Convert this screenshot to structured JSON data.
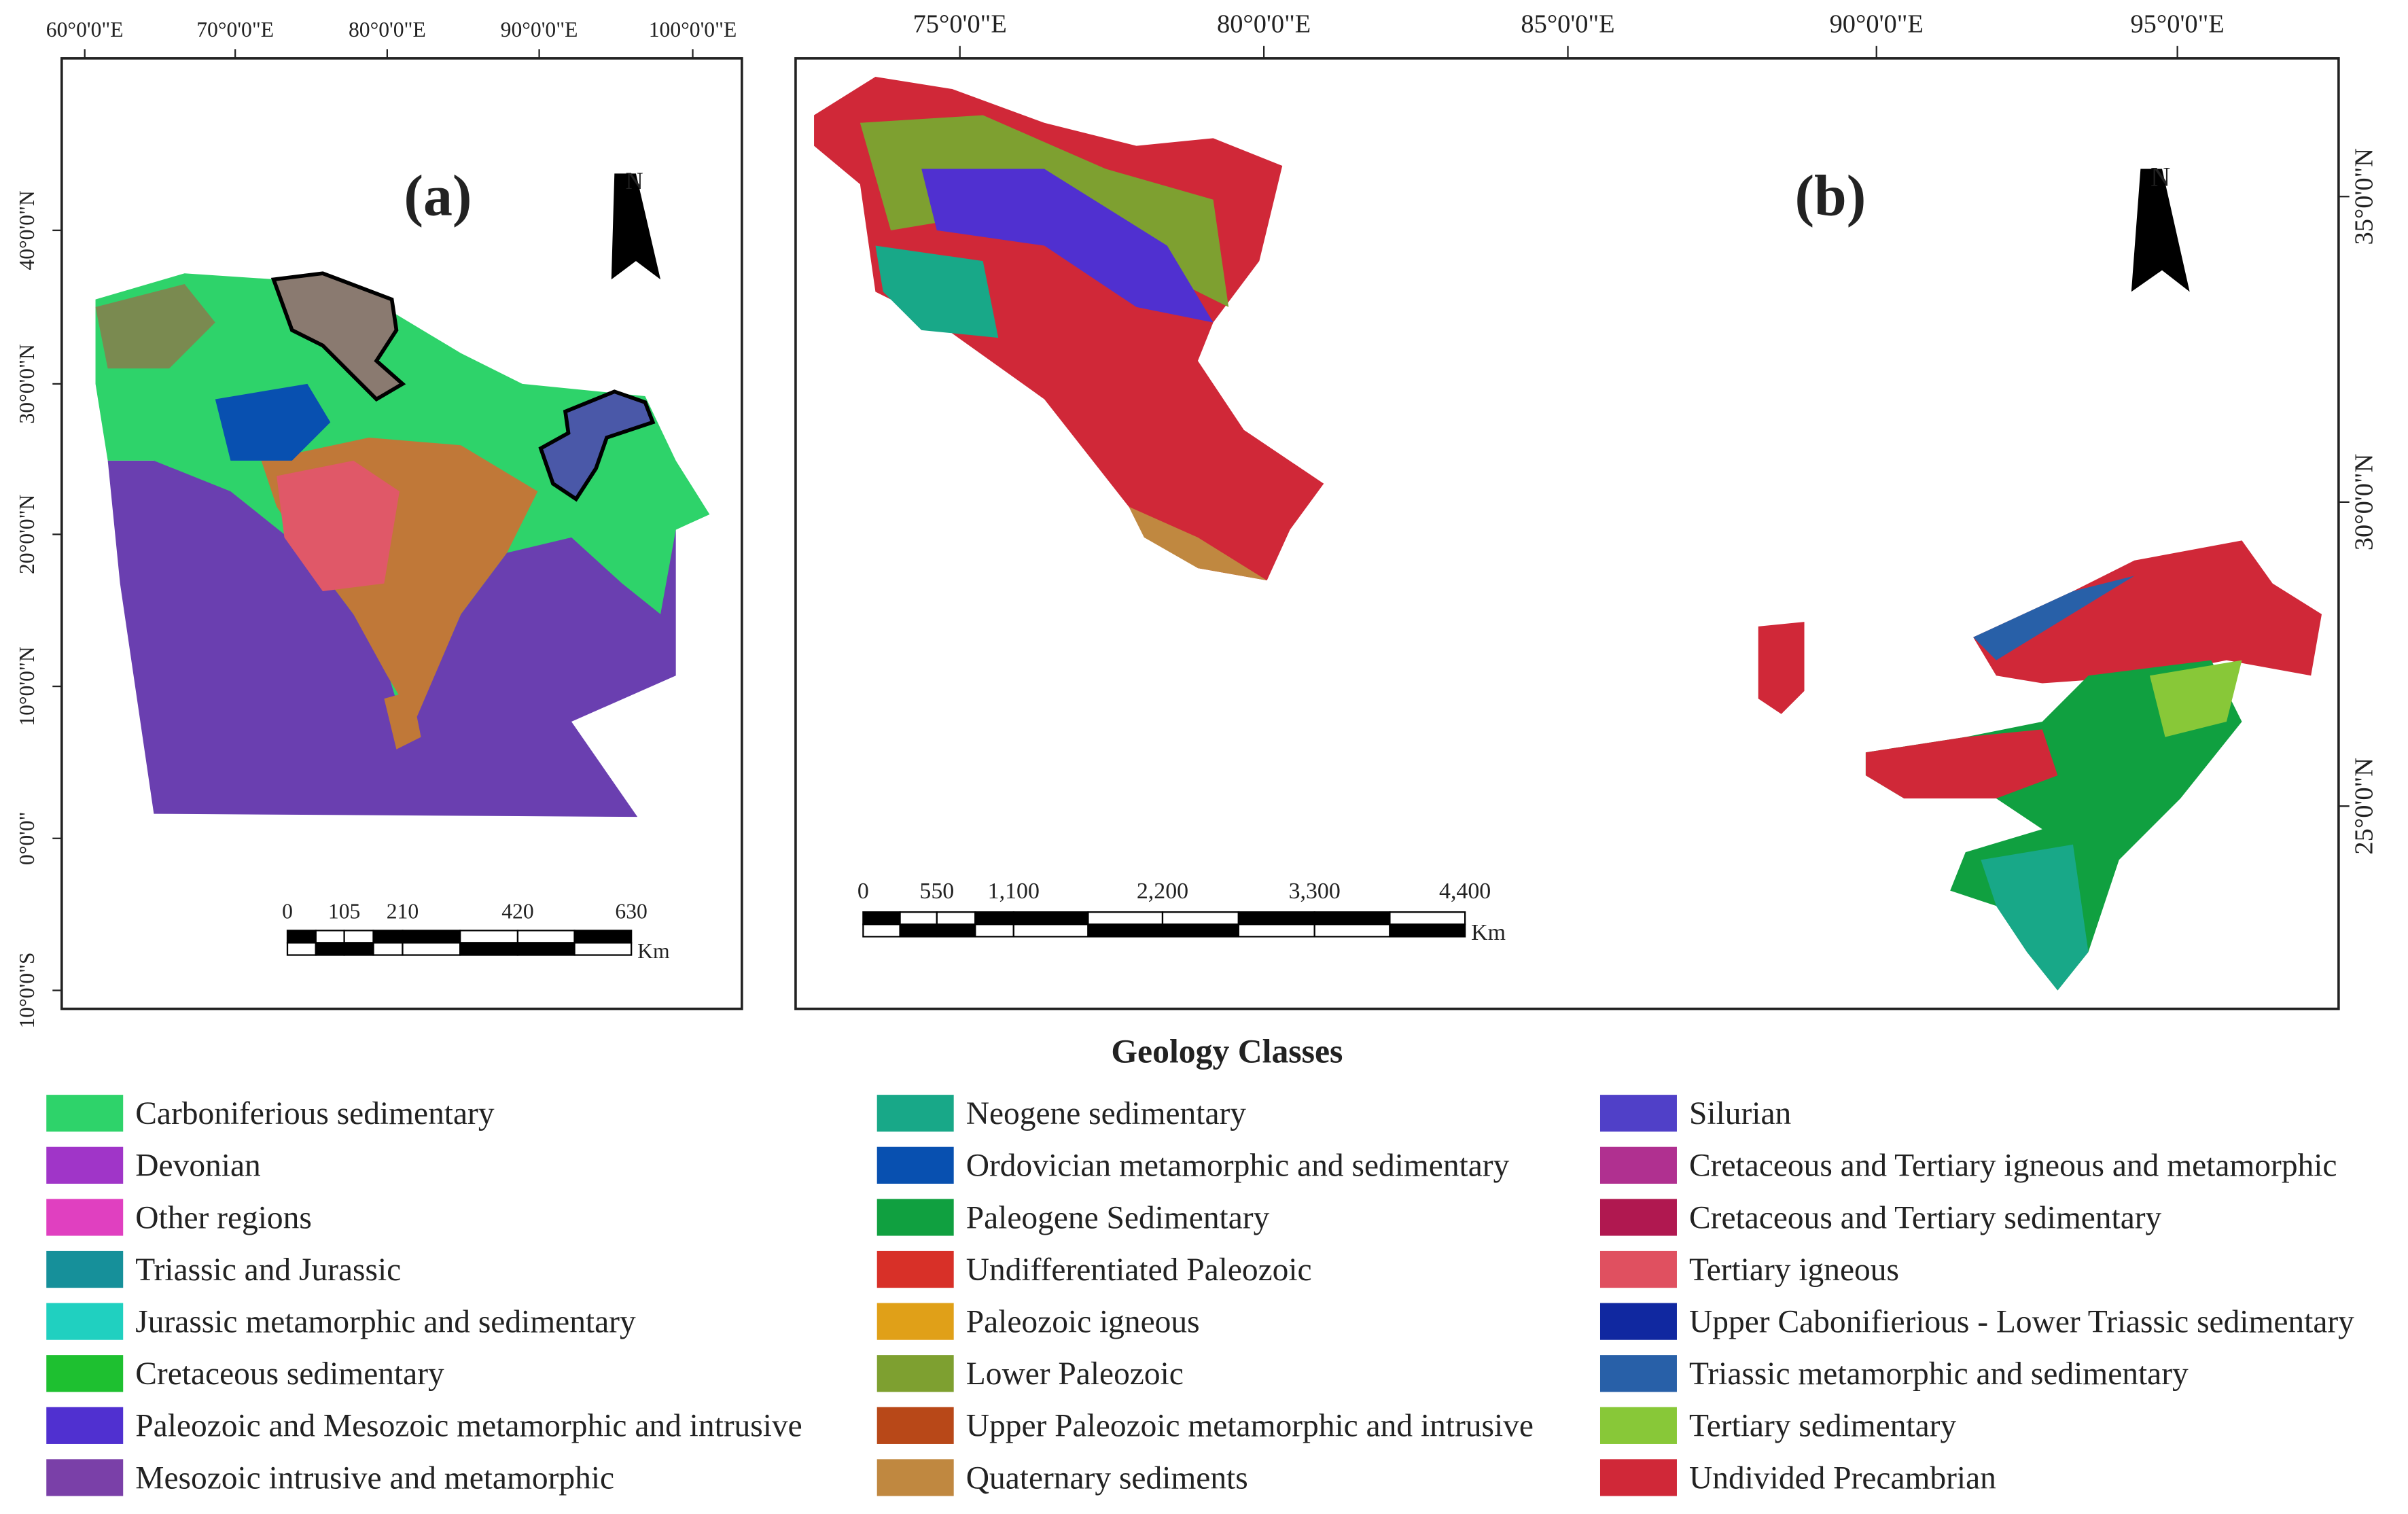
{
  "panel_a": {
    "label": "(a)",
    "north": "N",
    "x_labels": [
      "60°0'0\"E",
      "70°0'0\"E",
      "80°0'0\"E",
      "90°0'0\"E",
      "100°0'0\"E"
    ],
    "y_labels": [
      "40°0'0\"N",
      "30°0'0\"N",
      "20°0'0\"N",
      "10°0'0\"N",
      "0°0'0\"",
      "10°0'0\"S"
    ],
    "scale_labels": [
      "0",
      "105",
      "210",
      "420",
      "630"
    ],
    "scale_unit": "Km"
  },
  "panel_b": {
    "label": "(b)",
    "north": "N",
    "x_labels": [
      "75°0'0\"E",
      "80°0'0\"E",
      "85°0'0\"E",
      "90°0'0\"E",
      "95°0'0\"E"
    ],
    "y_labels": [
      "35°0'0\"N",
      "30°0'0\"N",
      "25°0'0\"N"
    ],
    "scale_labels": [
      "0",
      "550",
      "1,100",
      "2,200",
      "3,300",
      "4,400"
    ],
    "scale_unit": "Km"
  },
  "legend": {
    "title": "Geology Classes",
    "items": [
      {
        "label": "Carboniferious sedimentary",
        "color": "#2ed36a"
      },
      {
        "label": "Devonian",
        "color": "#a035c8"
      },
      {
        "label": "Other regions",
        "color": "#e040c0"
      },
      {
        "label": "Triassic and Jurassic",
        "color": "#16909a"
      },
      {
        "label": "Jurassic metamorphic and sedimentary",
        "color": "#20d0c0"
      },
      {
        "label": "Cretaceous sedimentary",
        "color": "#1ec030"
      },
      {
        "label": "Paleozoic and Mesozoic metamorphic and intrusive",
        "color": "#5030d0"
      },
      {
        "label": "Mesozoic intrusive and metamorphic",
        "color": "#7a40a8"
      },
      {
        "label": "Neogene sedimentary",
        "color": "#18a888"
      },
      {
        "label": "Ordovician metamorphic and sedimentary",
        "color": "#0850b0"
      },
      {
        "label": "Paleogene Sedimentary",
        "color": "#10a040"
      },
      {
        "label": "Undifferentiated Paleozoic",
        "color": "#d83028"
      },
      {
        "label": "Paleozoic igneous",
        "color": "#e0a018"
      },
      {
        "label": "Lower Paleozoic",
        "color": "#7ea030"
      },
      {
        "label": "Upper Paleozoic metamorphic and intrusive",
        "color": "#b84818"
      },
      {
        "label": "Quaternary sediments",
        "color": "#c08840"
      },
      {
        "label": "Silurian",
        "color": "#5040c8"
      },
      {
        "label": "Cretaceous and Tertiary igneous and metamorphic",
        "color": "#b03090"
      },
      {
        "label": "Cretaceous and Tertiary sedimentary",
        "color": "#b01850"
      },
      {
        "label": "Tertiary igneous",
        "color": "#e05060"
      },
      {
        "label": "Upper Cabonifierious - Lower Triassic sedimentary",
        "color": "#1028a0"
      },
      {
        "label": "Triassic metamorphic and sedimentary",
        "color": "#2860a8"
      },
      {
        "label": "Tertiary sedimentary",
        "color": "#88c838"
      },
      {
        "label": "Undivided Precambrian",
        "color": "#d02838"
      }
    ]
  }
}
